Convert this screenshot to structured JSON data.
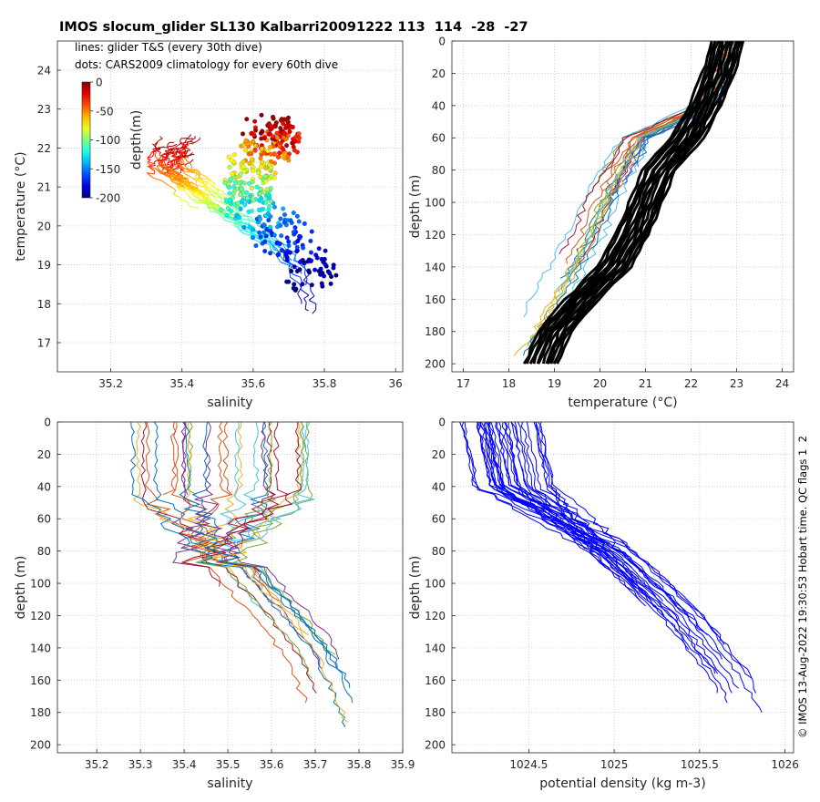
{
  "header": {
    "title": "IMOS slocum_glider SL130 Kalbarri20091222 113  114  -28  -27",
    "legend_line1": "lines: glider T&S (every 30th dive)",
    "legend_line2": "dots: CARS2009 climatology for every 60th dive",
    "side_note": "© IMOS 13-Aug-2022 19:30:53 Hobart time. QC flags 1  2"
  },
  "chart_data": [
    {
      "type": "scatter",
      "panel": "top-left",
      "xlabel": "salinity",
      "ylabel": "temperature (°C)",
      "xlim": [
        35.05,
        36.02
      ],
      "ylim": [
        16.25,
        24.75
      ],
      "xticks": [
        35.2,
        35.4,
        35.6,
        35.8,
        36
      ],
      "xtick_labels": [
        "35.2",
        "35.4",
        "35.6",
        "35.8",
        "36"
      ],
      "yticks": [
        17,
        18,
        19,
        20,
        21,
        22,
        23,
        24
      ],
      "ytick_labels": [
        "17",
        "18",
        "19",
        "20",
        "21",
        "22",
        "23",
        "24"
      ],
      "grid": true,
      "colorbar": {
        "label": "depth(m)",
        "range": [
          -200,
          0
        ],
        "ticks": [
          0,
          -50,
          -100,
          -150,
          -200
        ],
        "tick_labels": [
          "0",
          "-50",
          "-100",
          "-150",
          "-200"
        ],
        "colormap": "jet"
      },
      "series": [
        {
          "kind": "glider T&S lines",
          "depths": [
            0,
            20,
            40,
            60,
            80,
            100,
            120,
            140,
            160,
            180,
            195
          ],
          "salinity": [
            35.4,
            35.37,
            35.36,
            35.42,
            35.47,
            35.53,
            35.6,
            35.68,
            35.73,
            35.76,
            35.76
          ],
          "temperature": [
            22.0,
            21.8,
            21.5,
            21.1,
            20.7,
            20.3,
            19.9,
            19.4,
            18.8,
            18.1,
            17.7
          ]
        },
        {
          "kind": "CARS2009 climatology dots",
          "depths": [
            0,
            20,
            40,
            60,
            80,
            100,
            120,
            140,
            160,
            180,
            200
          ],
          "salinity": [
            35.63,
            35.66,
            35.66,
            35.62,
            35.59,
            35.58,
            35.58,
            35.62,
            35.68,
            35.74,
            35.78
          ],
          "temperature": [
            22.5,
            22.3,
            22.1,
            21.8,
            21.4,
            21.0,
            20.6,
            20.2,
            19.8,
            19.2,
            18.6
          ]
        }
      ]
    },
    {
      "type": "line",
      "panel": "top-right",
      "xlabel": "temperature (°C)",
      "ylabel": "depth (m)",
      "xlim": [
        16.75,
        24.25
      ],
      "ylim": [
        205,
        0
      ],
      "xticks": [
        17,
        18,
        19,
        20,
        21,
        22,
        23,
        24
      ],
      "xtick_labels": [
        "17",
        "18",
        "19",
        "20",
        "21",
        "22",
        "23",
        "24"
      ],
      "yticks": [
        0,
        20,
        40,
        60,
        80,
        100,
        120,
        140,
        160,
        180,
        200
      ],
      "ytick_labels": [
        "0",
        "20",
        "40",
        "60",
        "80",
        "100",
        "120",
        "140",
        "160",
        "180",
        "200"
      ],
      "grid": true,
      "series": [
        {
          "kind": "climatology (thick black)",
          "depth": [
            0,
            20,
            40,
            60,
            80,
            100,
            120,
            140,
            160,
            180,
            200
          ],
          "temperature": [
            22.8,
            22.6,
            22.3,
            21.9,
            21.3,
            21.0,
            20.7,
            20.3,
            19.6,
            19.0,
            18.7
          ]
        },
        {
          "kind": "glider profile (thin coloured)",
          "depth": [
            0,
            20,
            40,
            50,
            60,
            80,
            100,
            120,
            140,
            160,
            180,
            195
          ],
          "temperature": [
            22.9,
            22.6,
            22.3,
            21.6,
            20.8,
            20.4,
            20.0,
            19.7,
            19.3,
            18.9,
            18.5,
            18.1
          ]
        }
      ]
    },
    {
      "type": "line",
      "panel": "bottom-left",
      "xlabel": "salinity",
      "ylabel": "depth (m)",
      "xlim": [
        35.11,
        35.9
      ],
      "ylim": [
        205,
        0
      ],
      "xticks": [
        35.2,
        35.3,
        35.4,
        35.5,
        35.6,
        35.7,
        35.8,
        35.9
      ],
      "xtick_labels": [
        "35.2",
        "35.3",
        "35.4",
        "35.5",
        "35.6",
        "35.7",
        "35.8",
        "35.9"
      ],
      "yticks": [
        0,
        20,
        40,
        60,
        80,
        100,
        120,
        140,
        160,
        180,
        200
      ],
      "ytick_labels": [
        "0",
        "20",
        "40",
        "60",
        "80",
        "100",
        "120",
        "140",
        "160",
        "180",
        "200"
      ],
      "grid": true,
      "series": [
        {
          "kind": "glider salinity profile",
          "depth": [
            0,
            20,
            40,
            60,
            80,
            100,
            120,
            140,
            160,
            180,
            195
          ],
          "salinity": [
            35.4,
            35.38,
            35.4,
            35.45,
            35.5,
            35.55,
            35.62,
            35.68,
            35.72,
            35.75,
            35.76
          ]
        }
      ]
    },
    {
      "type": "line",
      "panel": "bottom-right",
      "xlabel": "potential density (kg m-3)",
      "ylabel": "depth (m)",
      "xlim": [
        1024.05,
        1026.05
      ],
      "ylim": [
        205,
        0
      ],
      "xticks": [
        1024.5,
        1025,
        1025.5,
        1026
      ],
      "xtick_labels": [
        "1024.5",
        "1025",
        "1025.5",
        "1026"
      ],
      "yticks": [
        0,
        20,
        40,
        60,
        80,
        100,
        120,
        140,
        160,
        180,
        200
      ],
      "ytick_labels": [
        "0",
        "20",
        "40",
        "60",
        "80",
        "100",
        "120",
        "140",
        "160",
        "180",
        "200"
      ],
      "grid": true,
      "series": [
        {
          "kind": "glider density profile (blue)",
          "depth": [
            0,
            20,
            40,
            60,
            80,
            100,
            120,
            140,
            160,
            180,
            195
          ],
          "density": [
            1024.5,
            1024.55,
            1024.6,
            1024.8,
            1025.0,
            1025.2,
            1025.4,
            1025.55,
            1025.7,
            1025.8,
            1025.85
          ]
        }
      ]
    }
  ]
}
